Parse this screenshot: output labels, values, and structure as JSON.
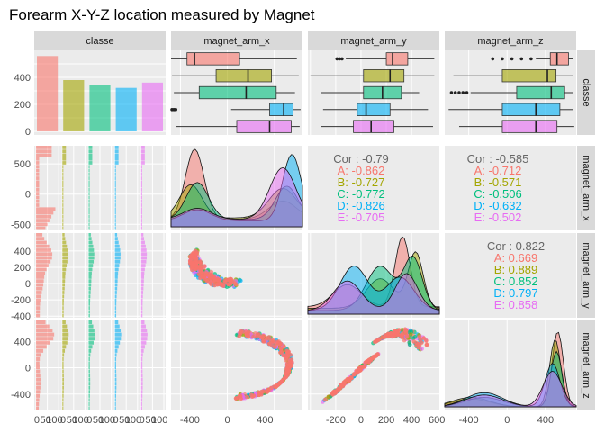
{
  "chart_data": {
    "type": "pairs",
    "title": "Forearm X-Y-Z location measured by Magnet",
    "variables": [
      "classe",
      "magnet_arm_x",
      "magnet_arm_y",
      "magnet_arm_z"
    ],
    "classes": [
      "A",
      "B",
      "C",
      "D",
      "E"
    ],
    "class_colors": {
      "A": "#F8766D",
      "B": "#A3A500",
      "C": "#00BF7D",
      "D": "#00B0F6",
      "E": "#E76BF3"
    },
    "class_counts": [
      558,
      380,
      342,
      322,
      361
    ],
    "class_counts_ylim": [
      0,
      600
    ],
    "ranges": {
      "magnet_arm_x": [
        -600,
        800
      ],
      "magnet_arm_y": [
        -420,
        620
      ],
      "magnet_arm_z": [
        -650,
        720
      ]
    },
    "axis_ticks": {
      "classe_count_y": [
        0,
        200,
        400
      ],
      "magnet_arm_x": [
        -500,
        0,
        500
      ],
      "magnet_arm_y": [
        -400,
        -200,
        0,
        200,
        400
      ],
      "magnet_arm_z": [
        -400,
        0,
        400
      ],
      "x_bottom_count": [
        "0",
        "50",
        "100",
        "0",
        "50",
        "100",
        "0",
        "50",
        "100",
        "0",
        "50",
        "100",
        "0",
        "50",
        "100"
      ],
      "x_bottom_magnet_arm_x": [
        -400,
        0,
        400
      ],
      "x_bottom_magnet_arm_y": [
        -200,
        0,
        200,
        400,
        600
      ],
      "x_bottom_magnet_arm_z": [
        -400,
        0,
        400
      ]
    },
    "boxplots": {
      "magnet_arm_x": [
        {
          "class": "A",
          "q1": -430,
          "median": -350,
          "q3": 130,
          "lo": -600,
          "hi": 740
        },
        {
          "class": "B",
          "q1": -120,
          "median": 220,
          "q3": 470,
          "lo": -590,
          "hi": 760
        },
        {
          "class": "C",
          "q1": -300,
          "median": 200,
          "q3": 520,
          "lo": -570,
          "hi": 720
        },
        {
          "class": "D",
          "q1": 450,
          "median": 600,
          "q3": 700,
          "lo": 40,
          "hi": 780,
          "outliers_lo": [
            -550,
            -570,
            -590
          ]
        },
        {
          "class": "E",
          "q1": 100,
          "median": 450,
          "q3": 680,
          "lo": -550,
          "hi": 770
        }
      ],
      "magnet_arm_y": [
        {
          "class": "A",
          "q1": 200,
          "median": 250,
          "q3": 370,
          "lo": -120,
          "hi": 580,
          "outliers_lo": [
            -150,
            -170,
            -190
          ]
        },
        {
          "class": "B",
          "q1": 20,
          "median": 230,
          "q3": 340,
          "lo": -400,
          "hi": 580
        },
        {
          "class": "C",
          "q1": 20,
          "median": 170,
          "q3": 320,
          "lo": -320,
          "hi": 460
        },
        {
          "class": "D",
          "q1": -30,
          "median": 40,
          "q3": 230,
          "lo": -300,
          "hi": 530
        },
        {
          "class": "E",
          "q1": -60,
          "median": 80,
          "q3": 260,
          "lo": -320,
          "hi": 570
        }
      ],
      "magnet_arm_z": [
        {
          "class": "A",
          "q1": 450,
          "median": 520,
          "q3": 640,
          "lo": 300,
          "hi": 690,
          "outliers_lo": [
            250,
            150,
            50,
            -50,
            -150
          ]
        },
        {
          "class": "B",
          "q1": -50,
          "median": 420,
          "q3": 510,
          "lo": -560,
          "hi": 690
        },
        {
          "class": "C",
          "q1": 100,
          "median": 460,
          "q3": 600,
          "lo": -380,
          "hi": 690,
          "outliers_lo": [
            -420,
            -460,
            -500,
            -540,
            -580
          ]
        },
        {
          "class": "D",
          "q1": -50,
          "median": 300,
          "q3": 550,
          "lo": -610,
          "hi": 690
        },
        {
          "class": "E",
          "q1": -50,
          "median": 300,
          "q3": 520,
          "lo": -500,
          "hi": 700
        }
      ]
    },
    "correlations": {
      "x_y": {
        "overall": "Cor : -0.79",
        "by_class": [
          "A: -0.862",
          "B: -0.727",
          "C: -0.772",
          "D: -0.826",
          "E: -0.705"
        ]
      },
      "x_z": {
        "overall": "Cor : -0.585",
        "by_class": [
          "A: -0.712",
          "B: -0.571",
          "C: -0.506",
          "D: -0.632",
          "E: -0.502"
        ]
      },
      "y_z": {
        "overall": "Cor : 0.822",
        "by_class": [
          "A: 0.669",
          "B: 0.889",
          "C: 0.852",
          "D: 0.797",
          "E: 0.858"
        ]
      }
    },
    "density_modes": {
      "magnet_arm_x": "bimodal with peaks near -350 and 650",
      "magnet_arm_y": "multimodal with peaks near 0 and 300",
      "magnet_arm_z": "strong peak near 550"
    }
  }
}
